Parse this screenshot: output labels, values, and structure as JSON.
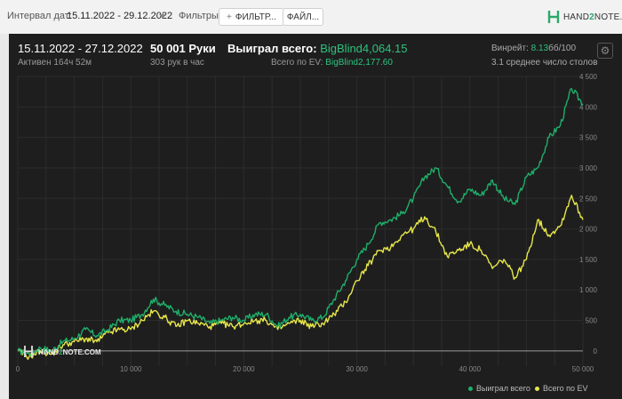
{
  "topbar": {
    "interval_label": "Интервал дат:",
    "interval_value": "15.11.2022 - 29.12.2022",
    "filters_label": "Фильтры:",
    "filter_button": "ФИЛЬТР...",
    "files_button": "ФАЙЛ...",
    "logo_left": "HAND",
    "logo_mid": "2",
    "logo_right": "NOTE.COM"
  },
  "summary": {
    "date_range": "15.11.2022 - 27.12.2022",
    "active": "Активен 164ч 52м",
    "hands": "50 001 Руки",
    "hands_per_hour": "303 рук в час",
    "won_label": "Выиграл всего:",
    "won_value": "BigBlind4,064.15",
    "ev_label": "Всего по EV:",
    "ev_value": "BigBlind2,177.60",
    "winrate_label": "Винрейт:",
    "winrate_value": "8.13",
    "winrate_suffix": "бб/100",
    "tables": "3.1 среднее число столов"
  },
  "watermark": {
    "left": "HAND",
    "mid": "2",
    "right": "NOTE.COM"
  },
  "colors": {
    "won": "#1fae6a",
    "ev": "#e6e64a",
    "grid": "#2c2c2c",
    "zero": "#9a9a9a"
  },
  "chart_data": {
    "type": "line",
    "xlim": [
      0,
      50000
    ],
    "ylim": [
      -250,
      4500
    ],
    "x_ticks": [
      0,
      10000,
      20000,
      30000,
      40000,
      50000
    ],
    "x_tick_labels": [
      "0",
      "10 000",
      "20 000",
      "30 000",
      "40 000",
      "50 000"
    ],
    "y_ticks": [
      0,
      500,
      1000,
      1500,
      2000,
      2500,
      3000,
      3500,
      4000,
      4500
    ],
    "y_tick_labels": [
      "0",
      "500",
      "1 000",
      "1 500",
      "2 000",
      "2 500",
      "3 000",
      "3 500",
      "4 000",
      "4 500"
    ],
    "legend": "bottom-right",
    "series": [
      {
        "name": "Выиграл всего",
        "x": [
          0,
          1000,
          2000,
          3000,
          4000,
          5000,
          6000,
          7000,
          8000,
          9000,
          10000,
          11000,
          12000,
          13000,
          14000,
          15000,
          16000,
          17000,
          18000,
          19000,
          20000,
          21000,
          22000,
          23000,
          24000,
          25000,
          26000,
          27000,
          28000,
          29000,
          30000,
          31000,
          32000,
          33000,
          34000,
          35000,
          36000,
          37000,
          38000,
          39000,
          40000,
          41000,
          42000,
          43000,
          44000,
          45000,
          46000,
          47000,
          48000,
          49000,
          50000
        ],
        "values": [
          0,
          -50,
          50,
          0,
          150,
          200,
          350,
          250,
          350,
          500,
          500,
          600,
          850,
          750,
          650,
          600,
          550,
          450,
          500,
          550,
          500,
          600,
          600,
          400,
          550,
          600,
          500,
          550,
          850,
          1150,
          1500,
          1750,
          2100,
          2150,
          2250,
          2500,
          2850,
          3000,
          2700,
          2450,
          2650,
          2550,
          2800,
          2500,
          2400,
          2850,
          3000,
          3500,
          3700,
          4300,
          4050
        ]
      },
      {
        "name": "Всего по EV",
        "x": [
          0,
          1000,
          2000,
          3000,
          4000,
          5000,
          6000,
          7000,
          8000,
          9000,
          10000,
          11000,
          12000,
          13000,
          14000,
          15000,
          16000,
          17000,
          18000,
          19000,
          20000,
          21000,
          22000,
          23000,
          24000,
          25000,
          26000,
          27000,
          28000,
          29000,
          30000,
          31000,
          32000,
          33000,
          34000,
          35000,
          36000,
          37000,
          38000,
          39000,
          40000,
          41000,
          42000,
          43000,
          44000,
          45000,
          46000,
          47000,
          48000,
          49000,
          50000
        ],
        "values": [
          0,
          -100,
          0,
          -50,
          100,
          150,
          200,
          150,
          300,
          350,
          350,
          500,
          650,
          550,
          400,
          500,
          450,
          400,
          450,
          400,
          450,
          500,
          500,
          350,
          450,
          500,
          400,
          450,
          600,
          800,
          1150,
          1400,
          1650,
          1700,
          1900,
          2000,
          2200,
          1950,
          1550,
          1650,
          1750,
          1650,
          1350,
          1500,
          1200,
          1500,
          2150,
          1900,
          2050,
          2550,
          2150
        ]
      }
    ]
  }
}
